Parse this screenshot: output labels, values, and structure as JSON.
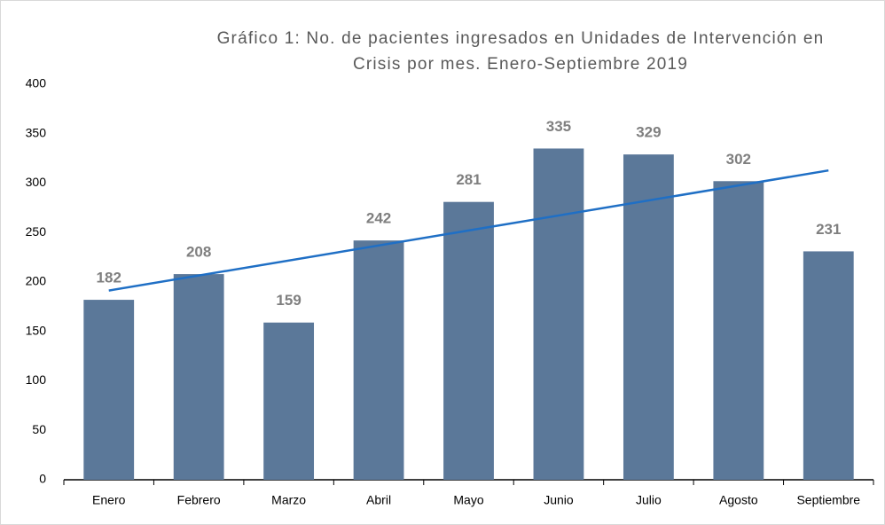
{
  "chart_data": {
    "type": "bar",
    "title": [
      "Gráfico 1: No. de pacientes ingresados en Unidades de Intervención en",
      "Crisis por mes. Enero-Septiembre 2019"
    ],
    "categories": [
      "Enero",
      "Febrero",
      "Marzo",
      "Abril",
      "Mayo",
      "Junio",
      "Julio",
      "Agosto",
      "Septiembre"
    ],
    "values": [
      182,
      208,
      159,
      242,
      281,
      335,
      329,
      302,
      231
    ],
    "color": "#5b7899",
    "trendline": "linear",
    "trendline_color": "#1f6fc5",
    "ylim": [
      0,
      400
    ],
    "yticks": [
      0,
      50,
      100,
      150,
      200,
      250,
      300,
      350,
      400
    ],
    "grid": false
  }
}
